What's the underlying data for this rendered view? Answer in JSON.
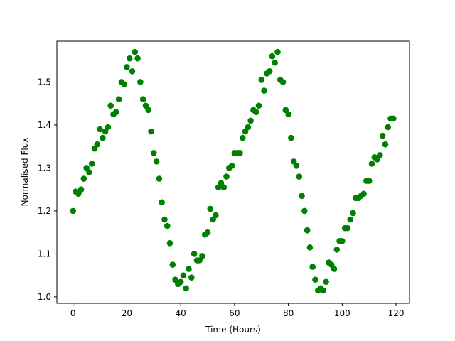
{
  "chart_data": {
    "type": "scatter",
    "xlabel": "Time (Hours)",
    "ylabel": "Normalised Flux",
    "xlim": [
      -6,
      125
    ],
    "ylim": [
      0.985,
      1.595
    ],
    "xticks": [
      0,
      20,
      40,
      60,
      80,
      100,
      120
    ],
    "xtick_labels": [
      "0",
      "20",
      "40",
      "60",
      "80",
      "100",
      "120"
    ],
    "yticks": [
      1.0,
      1.1,
      1.2,
      1.3,
      1.4,
      1.5
    ],
    "ytick_labels": [
      "1.0",
      "1.1",
      "1.2",
      "1.3",
      "1.4",
      "1.5"
    ],
    "grid": false,
    "marker_color": "#008000",
    "series": [
      {
        "points": [
          [
            0,
            1.2
          ],
          [
            1,
            1.245
          ],
          [
            2,
            1.24
          ],
          [
            3,
            1.25
          ],
          [
            4,
            1.275
          ],
          [
            5,
            1.3
          ],
          [
            6,
            1.29
          ],
          [
            7,
            1.31
          ],
          [
            8,
            1.345
          ],
          [
            9,
            1.355
          ],
          [
            10,
            1.39
          ],
          [
            11,
            1.37
          ],
          [
            12,
            1.385
          ],
          [
            13,
            1.395
          ],
          [
            14,
            1.445
          ],
          [
            15,
            1.425
          ],
          [
            16,
            1.43
          ],
          [
            17,
            1.46
          ],
          [
            18,
            1.5
          ],
          [
            19,
            1.495
          ],
          [
            20,
            1.535
          ],
          [
            21,
            1.555
          ],
          [
            22,
            1.525
          ],
          [
            23,
            1.57
          ],
          [
            24,
            1.555
          ],
          [
            25,
            1.5
          ],
          [
            26,
            1.46
          ],
          [
            27,
            1.445
          ],
          [
            28,
            1.435
          ],
          [
            29,
            1.385
          ],
          [
            30,
            1.335
          ],
          [
            31,
            1.315
          ],
          [
            32,
            1.275
          ],
          [
            33,
            1.22
          ],
          [
            34,
            1.18
          ],
          [
            35,
            1.165
          ],
          [
            36,
            1.125
          ],
          [
            37,
            1.075
          ],
          [
            38,
            1.04
          ],
          [
            39,
            1.03
          ],
          [
            40,
            1.035
          ],
          [
            41,
            1.05
          ],
          [
            42,
            1.02
          ],
          [
            43,
            1.065
          ],
          [
            44,
            1.045
          ],
          [
            45,
            1.1
          ],
          [
            46,
            1.085
          ],
          [
            47,
            1.085
          ],
          [
            48,
            1.095
          ],
          [
            49,
            1.145
          ],
          [
            50,
            1.15
          ],
          [
            51,
            1.205
          ],
          [
            52,
            1.18
          ],
          [
            53,
            1.19
          ],
          [
            54,
            1.255
          ],
          [
            55,
            1.265
          ],
          [
            56,
            1.255
          ],
          [
            57,
            1.28
          ],
          [
            58,
            1.3
          ],
          [
            59,
            1.305
          ],
          [
            60,
            1.335
          ],
          [
            61,
            1.335
          ],
          [
            62,
            1.335
          ],
          [
            63,
            1.37
          ],
          [
            64,
            1.385
          ],
          [
            65,
            1.395
          ],
          [
            66,
            1.41
          ],
          [
            67,
            1.435
          ],
          [
            68,
            1.43
          ],
          [
            69,
            1.445
          ],
          [
            70,
            1.505
          ],
          [
            71,
            1.48
          ],
          [
            72,
            1.52
          ],
          [
            73,
            1.525
          ],
          [
            74,
            1.56
          ],
          [
            75,
            1.545
          ],
          [
            76,
            1.57
          ],
          [
            77,
            1.505
          ],
          [
            78,
            1.5
          ],
          [
            79,
            1.435
          ],
          [
            80,
            1.425
          ],
          [
            81,
            1.37
          ],
          [
            82,
            1.315
          ],
          [
            83,
            1.305
          ],
          [
            84,
            1.28
          ],
          [
            85,
            1.235
          ],
          [
            86,
            1.2
          ],
          [
            87,
            1.155
          ],
          [
            88,
            1.115
          ],
          [
            89,
            1.07
          ],
          [
            90,
            1.04
          ],
          [
            91,
            1.015
          ],
          [
            92,
            1.02
          ],
          [
            93,
            1.015
          ],
          [
            94,
            1.035
          ],
          [
            95,
            1.08
          ],
          [
            96,
            1.075
          ],
          [
            97,
            1.065
          ],
          [
            98,
            1.11
          ],
          [
            99,
            1.13
          ],
          [
            100,
            1.13
          ],
          [
            101,
            1.16
          ],
          [
            102,
            1.16
          ],
          [
            103,
            1.18
          ],
          [
            104,
            1.195
          ],
          [
            105,
            1.23
          ],
          [
            106,
            1.23
          ],
          [
            107,
            1.235
          ],
          [
            108,
            1.24
          ],
          [
            109,
            1.27
          ],
          [
            110,
            1.27
          ],
          [
            111,
            1.31
          ],
          [
            112,
            1.325
          ],
          [
            113,
            1.32
          ],
          [
            114,
            1.33
          ],
          [
            115,
            1.375
          ],
          [
            116,
            1.355
          ],
          [
            117,
            1.395
          ],
          [
            118,
            1.415
          ],
          [
            119,
            1.415
          ]
        ]
      }
    ]
  }
}
